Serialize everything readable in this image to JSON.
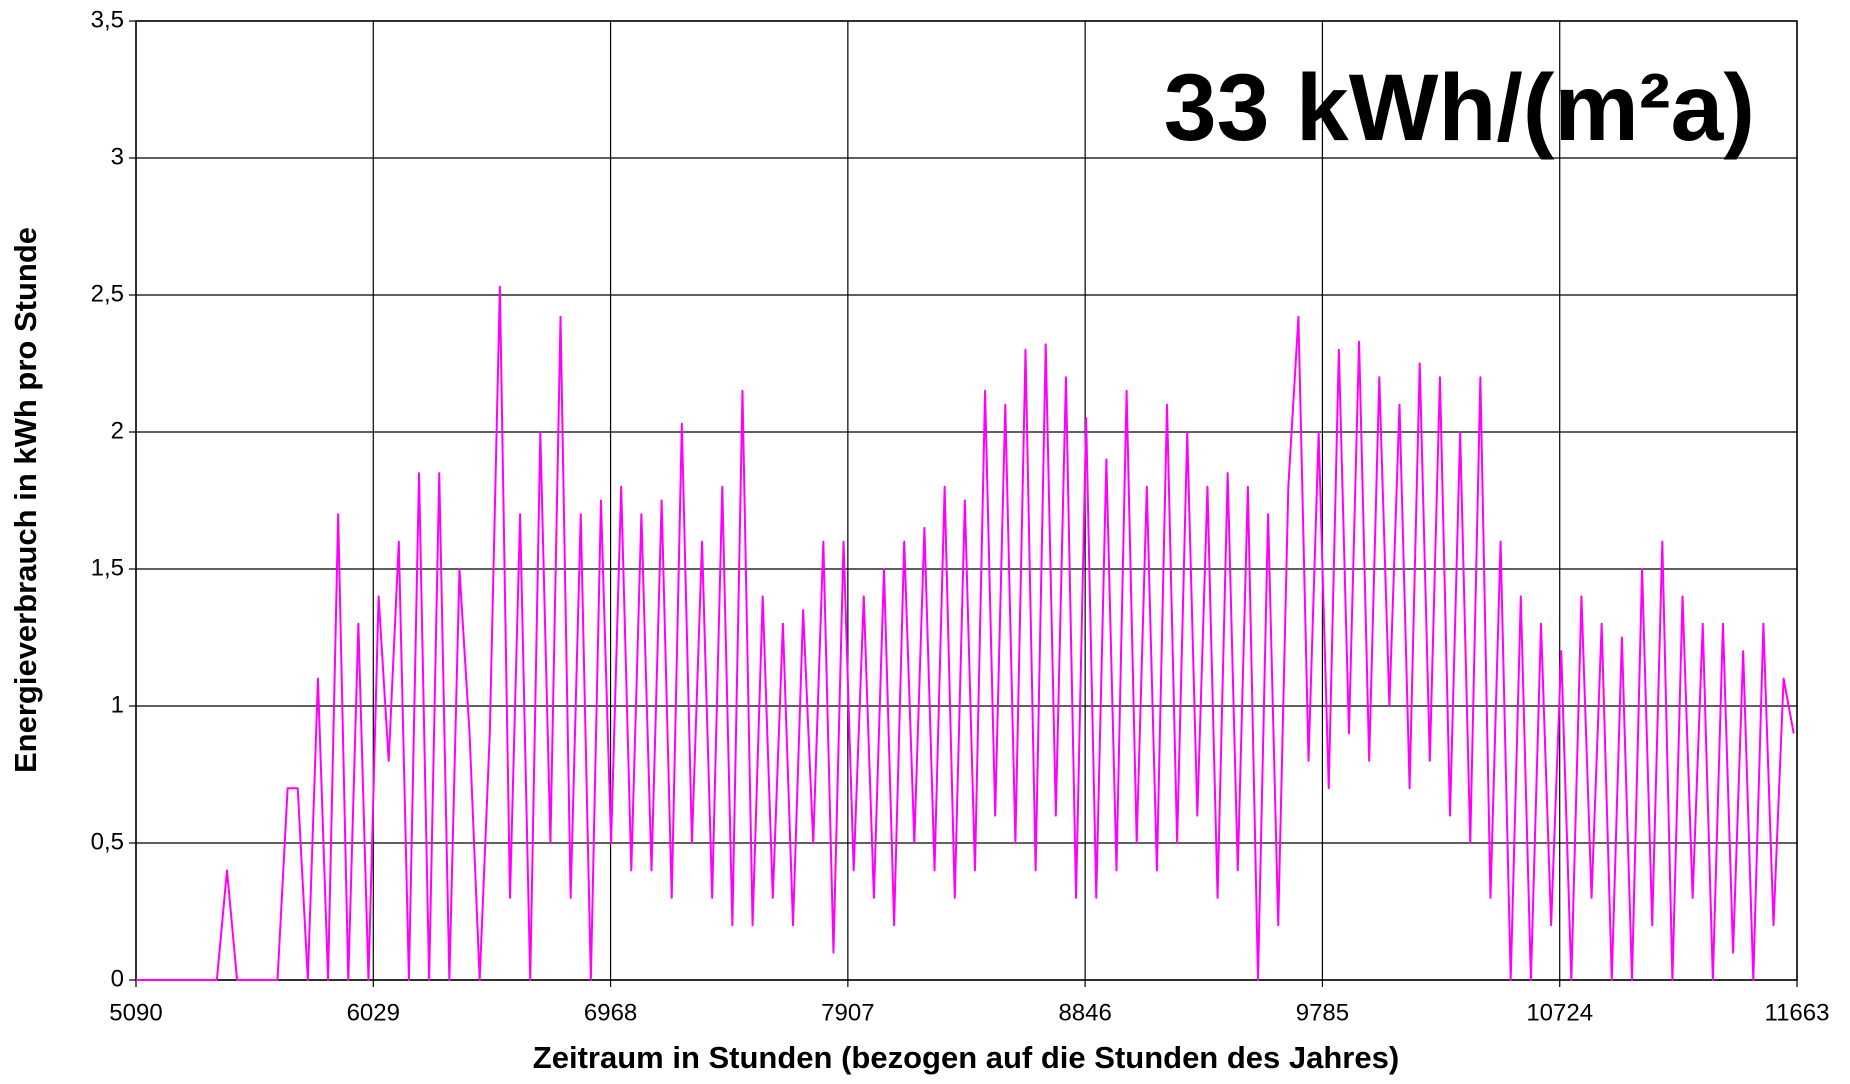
{
  "chart_data": {
    "type": "line",
    "annotation": "33 kWh/(m²a)",
    "x_label": "Zeitraum in Stunden (bezogen auf die Stunden des Jahres)",
    "y_label": "Energieverbrauch in kWh pro Stunde",
    "grid": true,
    "xlim": [
      5090,
      11663
    ],
    "xticks": [
      5090,
      6029,
      6968,
      7907,
      8846,
      9785,
      10724,
      11663
    ],
    "ylim": [
      0,
      3.5
    ],
    "yticks": [
      0,
      {
        "value": 0.5,
        "label": "0,5"
      },
      1,
      {
        "value": 1.5,
        "label": "1,5"
      },
      2,
      {
        "value": 2.5,
        "label": "2,5"
      },
      3,
      {
        "value": 3.5,
        "label": "3,5"
      }
    ],
    "x": [
      5090,
      5130,
      5170,
      5210,
      5250,
      5290,
      5330,
      5370,
      5410,
      5450,
      5490,
      5530,
      5570,
      5610,
      5650,
      5690,
      5730,
      5770,
      5810,
      5850,
      5890,
      5930,
      5970,
      6010,
      6050,
      6090,
      6130,
      6170,
      6210,
      6250,
      6290,
      6330,
      6370,
      6410,
      6450,
      6490,
      6530,
      6570,
      6610,
      6650,
      6690,
      6730,
      6770,
      6810,
      6850,
      6890,
      6930,
      6970,
      7010,
      7050,
      7090,
      7130,
      7170,
      7210,
      7250,
      7290,
      7330,
      7370,
      7410,
      7450,
      7490,
      7530,
      7570,
      7610,
      7650,
      7690,
      7730,
      7770,
      7810,
      7850,
      7890,
      7930,
      7970,
      8010,
      8050,
      8090,
      8130,
      8170,
      8210,
      8250,
      8290,
      8330,
      8370,
      8410,
      8450,
      8490,
      8530,
      8570,
      8610,
      8650,
      8690,
      8730,
      8770,
      8810,
      8850,
      8890,
      8930,
      8970,
      9010,
      9050,
      9090,
      9130,
      9170,
      9210,
      9250,
      9290,
      9330,
      9370,
      9410,
      9450,
      9490,
      9530,
      9570,
      9610,
      9650,
      9690,
      9730,
      9770,
      9810,
      9850,
      9890,
      9930,
      9970,
      10010,
      10050,
      10090,
      10130,
      10170,
      10210,
      10250,
      10290,
      10330,
      10370,
      10410,
      10450,
      10490,
      10530,
      10570,
      10610,
      10650,
      10690,
      10730,
      10770,
      10810,
      10850,
      10890,
      10930,
      10970,
      11010,
      11050,
      11090,
      11130,
      11170,
      11210,
      11250,
      11290,
      11330,
      11370,
      11410,
      11450,
      11490,
      11530,
      11570,
      11610,
      11650
    ],
    "series": [
      {
        "color": "#ff00ff",
        "values": [
          0,
          0,
          0,
          0,
          0,
          0,
          0,
          0,
          0,
          0.4,
          0,
          0,
          0,
          0,
          0,
          0.7,
          0.7,
          0,
          1.1,
          0,
          1.7,
          0,
          1.3,
          0,
          1.4,
          0.8,
          1.6,
          0,
          1.85,
          0,
          1.85,
          0,
          1.5,
          0.9,
          0,
          0.9,
          2.53,
          0.3,
          1.7,
          0,
          2.0,
          0.5,
          2.42,
          0.3,
          1.7,
          0,
          1.75,
          0.5,
          1.8,
          0.4,
          1.7,
          0.4,
          1.75,
          0.3,
          2.03,
          0.5,
          1.6,
          0.3,
          1.8,
          0.2,
          2.15,
          0.2,
          1.4,
          0.3,
          1.3,
          0.2,
          1.35,
          0.5,
          1.6,
          0.1,
          1.6,
          0.4,
          1.4,
          0.3,
          1.5,
          0.2,
          1.6,
          0.5,
          1.65,
          0.4,
          1.8,
          0.3,
          1.75,
          0.4,
          2.15,
          0.6,
          2.1,
          0.5,
          2.3,
          0.4,
          2.32,
          0.6,
          2.2,
          0.3,
          2.05,
          0.3,
          1.9,
          0.4,
          2.15,
          0.5,
          1.8,
          0.4,
          2.1,
          0.5,
          2.0,
          0.6,
          1.8,
          0.3,
          1.85,
          0.4,
          1.8,
          0,
          1.7,
          0.2,
          1.8,
          2.42,
          0.8,
          2.0,
          0.7,
          2.3,
          0.9,
          2.33,
          0.8,
          2.2,
          1.0,
          2.1,
          0.7,
          2.25,
          0.8,
          2.2,
          0.6,
          2.0,
          0.5,
          2.2,
          0.3,
          1.6,
          0,
          1.4,
          0,
          1.3,
          0.2,
          1.2,
          0,
          1.4,
          0.3,
          1.3,
          0,
          1.25,
          0,
          1.5,
          0.2,
          1.6,
          0,
          1.4,
          0.3,
          1.3,
          0,
          1.3,
          0.1,
          1.2,
          0,
          1.3,
          0.2,
          1.1,
          0.9
        ]
      }
    ]
  }
}
